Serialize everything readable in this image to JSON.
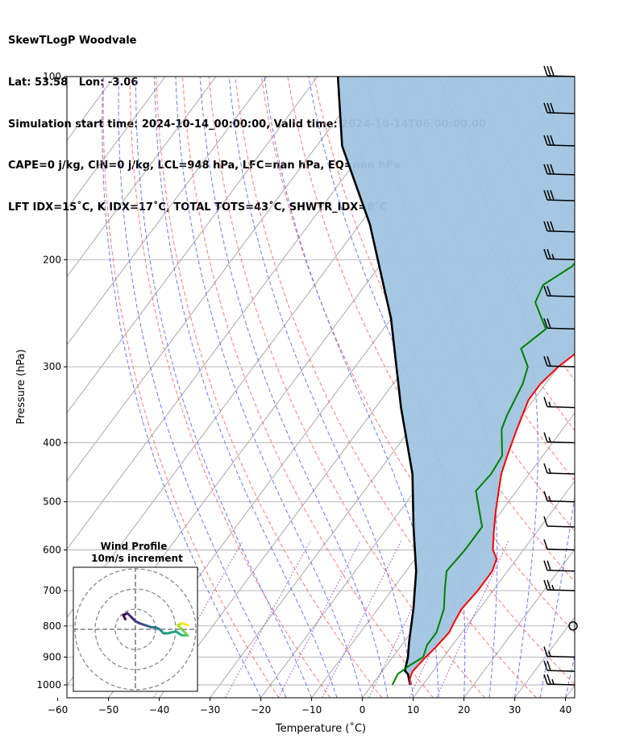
{
  "header": {
    "line1": "SkewTLogP Woodvale",
    "line2": "Lat: 53.58   Lon: -3.06",
    "line3": "Simulation start time: 2024-10-14_00:00:00, Valid time: 2024-10-14T06:00:00.00",
    "line4": "CAPE=0 j/kg, CIN=0 j/kg, LCL=948 hPa, LFC=nan hPa, EQ=nan hPa",
    "line5": "LFT IDX=15˚C, K IDX=17˚C, TOTAL TOTS=43˚C, SHWTR_IDX=8˚C"
  },
  "chart_data": {
    "type": "line",
    "subtype": "skew-t log-p",
    "xlabel": "Temperature (˚C)",
    "ylabel": "Pressure (hPa)",
    "xlim": [
      -60,
      40
    ],
    "ylim": [
      1050,
      100
    ],
    "y_scale": "log",
    "xticks": [
      -60,
      -50,
      -40,
      -30,
      -20,
      -10,
      0,
      10,
      20,
      30,
      40
    ],
    "yticks": [
      1000,
      900,
      800,
      700,
      600,
      500,
      400,
      300,
      200,
      100
    ],
    "grid": true,
    "colors": {
      "temperature": "#ff0000",
      "dewpoint": "#008000",
      "parcel": "#000000",
      "shading": "#a0c4e0",
      "dry_adiabats": "#ff6060",
      "moist_adiabats": "#5060ff",
      "mixing_ratio": "#a040c0",
      "isotherms": "#a0a0a0"
    },
    "series": [
      {
        "role": "temperature",
        "points": [
          [
            7.5,
            1000
          ],
          [
            6.5,
            975
          ],
          [
            6,
            950
          ],
          [
            6.5,
            900
          ],
          [
            7,
            870
          ],
          [
            7.5,
            820
          ],
          [
            7,
            790
          ],
          [
            6.5,
            750
          ],
          [
            7,
            700
          ],
          [
            7,
            650
          ],
          [
            6,
            620
          ],
          [
            4,
            600
          ],
          [
            1.5,
            560
          ],
          [
            -1,
            520
          ],
          [
            -3.5,
            480
          ],
          [
            -5.5,
            450
          ],
          [
            -7,
            420
          ],
          [
            -9,
            380
          ],
          [
            -11,
            340
          ],
          [
            -11,
            320
          ],
          [
            -10,
            300
          ],
          [
            -7,
            270
          ],
          [
            -4.5,
            250
          ],
          [
            -2.5,
            230
          ],
          [
            -1,
            210
          ],
          [
            0.5,
            190
          ],
          [
            2,
            175
          ],
          [
            4,
            155
          ],
          [
            6,
            135
          ],
          [
            8,
            120
          ],
          [
            10,
            110
          ],
          [
            12,
            100
          ]
        ]
      },
      {
        "role": "dewpoint",
        "points": [
          [
            4,
            1000
          ],
          [
            3.5,
            960
          ],
          [
            4.5,
            930
          ],
          [
            6,
            900
          ],
          [
            5,
            860
          ],
          [
            5,
            820
          ],
          [
            3,
            750
          ],
          [
            0,
            690
          ],
          [
            -2,
            650
          ],
          [
            -1.5,
            600
          ],
          [
            -1.5,
            550
          ],
          [
            -8,
            480
          ],
          [
            -7.5,
            450
          ],
          [
            -8,
            420
          ],
          [
            -12,
            380
          ],
          [
            -13,
            360
          ],
          [
            -14.5,
            320
          ],
          [
            -16,
            300
          ],
          [
            -20,
            280
          ],
          [
            -18,
            260
          ],
          [
            -24,
            235
          ],
          [
            -25,
            220
          ],
          [
            -22,
            205
          ],
          [
            -22,
            190
          ],
          [
            -22,
            175
          ],
          [
            -19,
            155
          ],
          [
            -14,
            135
          ],
          [
            -8,
            115
          ],
          [
            -3,
            100
          ]
        ]
      },
      {
        "role": "parcel",
        "points": [
          [
            7.5,
            1000
          ],
          [
            5.5,
            960
          ],
          [
            4.4,
            948
          ],
          [
            3,
            900
          ],
          [
            1,
            850
          ],
          [
            -3,
            750
          ],
          [
            -8,
            650
          ],
          [
            -15,
            550
          ],
          [
            -23,
            450
          ],
          [
            -35,
            350
          ],
          [
            -50,
            250
          ],
          [
            -68,
            175
          ],
          [
            -85,
            130
          ],
          [
            -96,
            100
          ]
        ]
      }
    ],
    "wind_barbs": [
      {
        "pressure": 1000,
        "speed_kt": 25
      },
      {
        "pressure": 950,
        "speed_kt": 20
      },
      {
        "pressure": 900,
        "speed_kt": 15
      },
      {
        "pressure": 800,
        "speed_kt": 0
      },
      {
        "pressure": 700,
        "speed_kt": 25
      },
      {
        "pressure": 650,
        "speed_kt": 20
      },
      {
        "pressure": 600,
        "speed_kt": 10
      },
      {
        "pressure": 550,
        "speed_kt": 10
      },
      {
        "pressure": 500,
        "speed_kt": 15
      },
      {
        "pressure": 450,
        "speed_kt": 15
      },
      {
        "pressure": 400,
        "speed_kt": 15
      },
      {
        "pressure": 350,
        "speed_kt": 15
      },
      {
        "pressure": 300,
        "speed_kt": 20
      },
      {
        "pressure": 260,
        "speed_kt": 20
      },
      {
        "pressure": 230,
        "speed_kt": 20
      },
      {
        "pressure": 200,
        "speed_kt": 25
      },
      {
        "pressure": 180,
        "speed_kt": 30
      },
      {
        "pressure": 160,
        "speed_kt": 30
      },
      {
        "pressure": 145,
        "speed_kt": 30
      },
      {
        "pressure": 130,
        "speed_kt": 30
      },
      {
        "pressure": 115,
        "speed_kt": 30
      },
      {
        "pressure": 100,
        "speed_kt": 30
      }
    ],
    "hodograph": {
      "title": "Wind Profile",
      "subtitle": "10m/s increment",
      "rings_ms": [
        10,
        20,
        30
      ],
      "points": [
        [
          -5,
          5
        ],
        [
          -6,
          7
        ],
        [
          -4,
          8
        ],
        [
          -2,
          6
        ],
        [
          0,
          4
        ],
        [
          2,
          3
        ],
        [
          5,
          2
        ],
        [
          8,
          1
        ],
        [
          10,
          1
        ],
        [
          12,
          0
        ],
        [
          14,
          -2
        ],
        [
          16,
          -2
        ],
        [
          20,
          -1
        ],
        [
          23,
          -3
        ],
        [
          26,
          -3
        ],
        [
          24,
          -1
        ],
        [
          22,
          1
        ],
        [
          21,
          2
        ],
        [
          23,
          3
        ],
        [
          26,
          2
        ]
      ]
    }
  }
}
